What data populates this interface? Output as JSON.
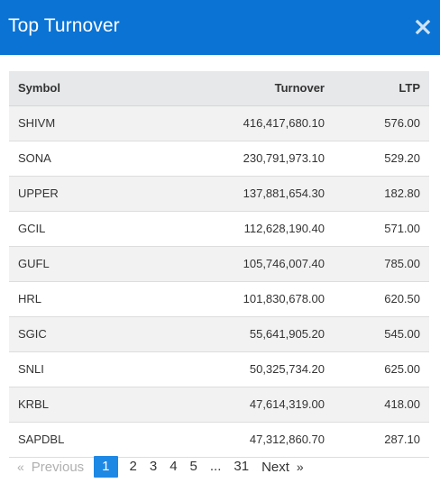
{
  "modal": {
    "title": "Top Turnover",
    "close_icon": "close-icon"
  },
  "table": {
    "headers": {
      "symbol": "Symbol",
      "turnover": "Turnover",
      "ltp": "LTP"
    },
    "rows": [
      {
        "symbol": "SHIVM",
        "turnover": "416,417,680.10",
        "ltp": "576.00"
      },
      {
        "symbol": "SONA",
        "turnover": "230,791,973.10",
        "ltp": "529.20"
      },
      {
        "symbol": "UPPER",
        "turnover": "137,881,654.30",
        "ltp": "182.80"
      },
      {
        "symbol": "GCIL",
        "turnover": "112,628,190.40",
        "ltp": "571.00"
      },
      {
        "symbol": "GUFL",
        "turnover": "105,746,007.40",
        "ltp": "785.00"
      },
      {
        "symbol": "HRL",
        "turnover": "101,830,678.00",
        "ltp": "620.50"
      },
      {
        "symbol": "SGIC",
        "turnover": "55,641,905.20",
        "ltp": "545.00"
      },
      {
        "symbol": "SNLI",
        "turnover": "50,325,734.20",
        "ltp": "625.00"
      },
      {
        "symbol": "KRBL",
        "turnover": "47,614,319.00",
        "ltp": "418.00"
      },
      {
        "symbol": "SAPDBL",
        "turnover": "47,312,860.70",
        "ltp": "287.10"
      }
    ]
  },
  "pagination": {
    "prev_arrow": "«",
    "previous": "Previous",
    "pages": [
      "1",
      "2",
      "3",
      "4",
      "5"
    ],
    "ellipsis": "...",
    "last_page": "31",
    "next": "Next",
    "next_arrow": "»",
    "current_page": "1"
  },
  "colors": {
    "header_bg": "#0a73d4",
    "active_page_bg": "#1e88e5",
    "table_head_bg": "#e6e8ea",
    "row_stripe_bg": "#f2f2f2"
  }
}
